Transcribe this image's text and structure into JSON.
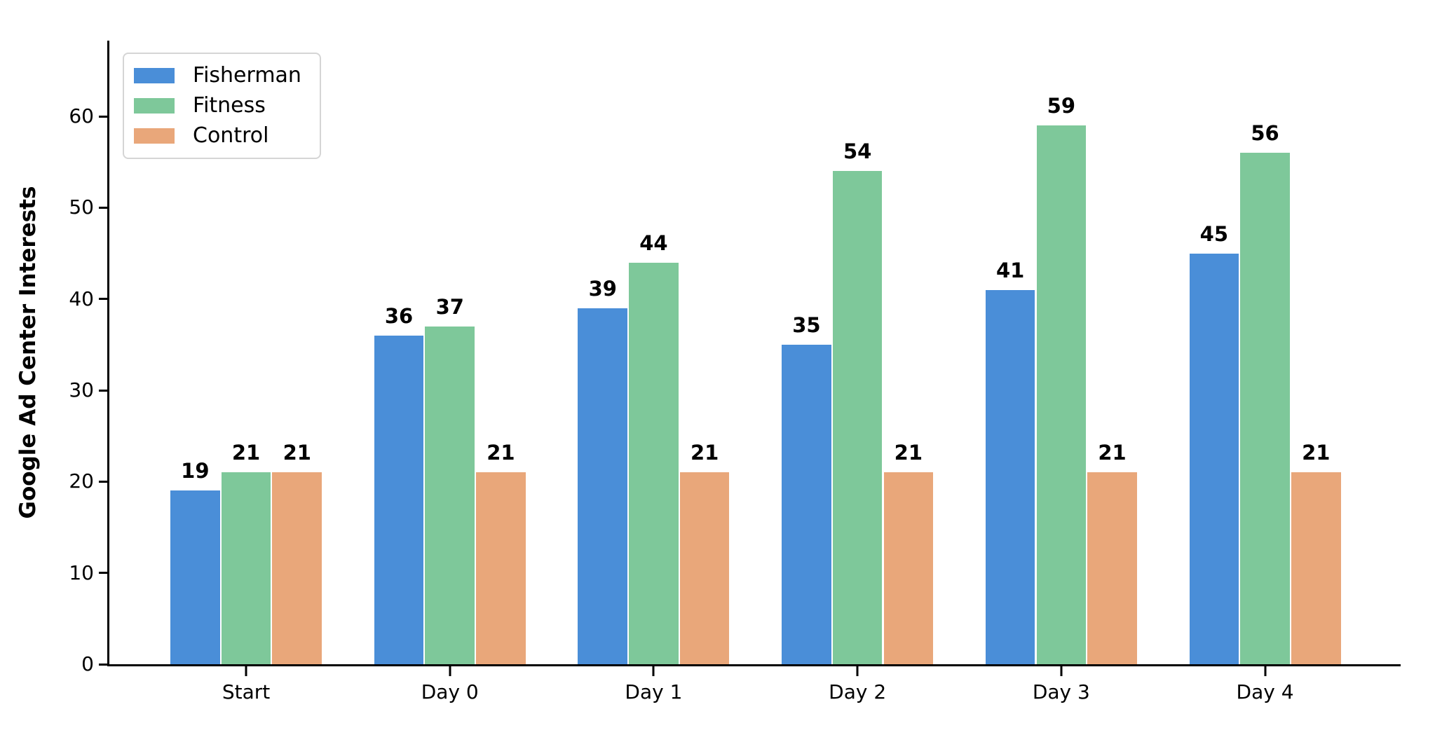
{
  "chart_data": {
    "type": "bar",
    "title": "",
    "xlabel": "",
    "ylabel": "Google Ad Center Interests",
    "categories": [
      "Start",
      "Day 0",
      "Day 1",
      "Day 2",
      "Day 3",
      "Day 4"
    ],
    "series": [
      {
        "name": "Fisherman",
        "color": "#4a8ed8",
        "values": [
          19,
          36,
          39,
          35,
          41,
          45
        ]
      },
      {
        "name": "Fitness",
        "color": "#7ec89a",
        "values": [
          21,
          37,
          44,
          54,
          59,
          56
        ]
      },
      {
        "name": "Control",
        "color": "#e9a77a",
        "values": [
          21,
          21,
          21,
          21,
          21,
          21
        ]
      }
    ],
    "yticks": [
      0,
      10,
      20,
      30,
      40,
      50,
      60
    ],
    "ylim": [
      0,
      68.3
    ],
    "grid": false,
    "bar_value_labels": true,
    "legend_position": "upper left",
    "axis_color": "#000000",
    "background_color": "#ffffff"
  }
}
